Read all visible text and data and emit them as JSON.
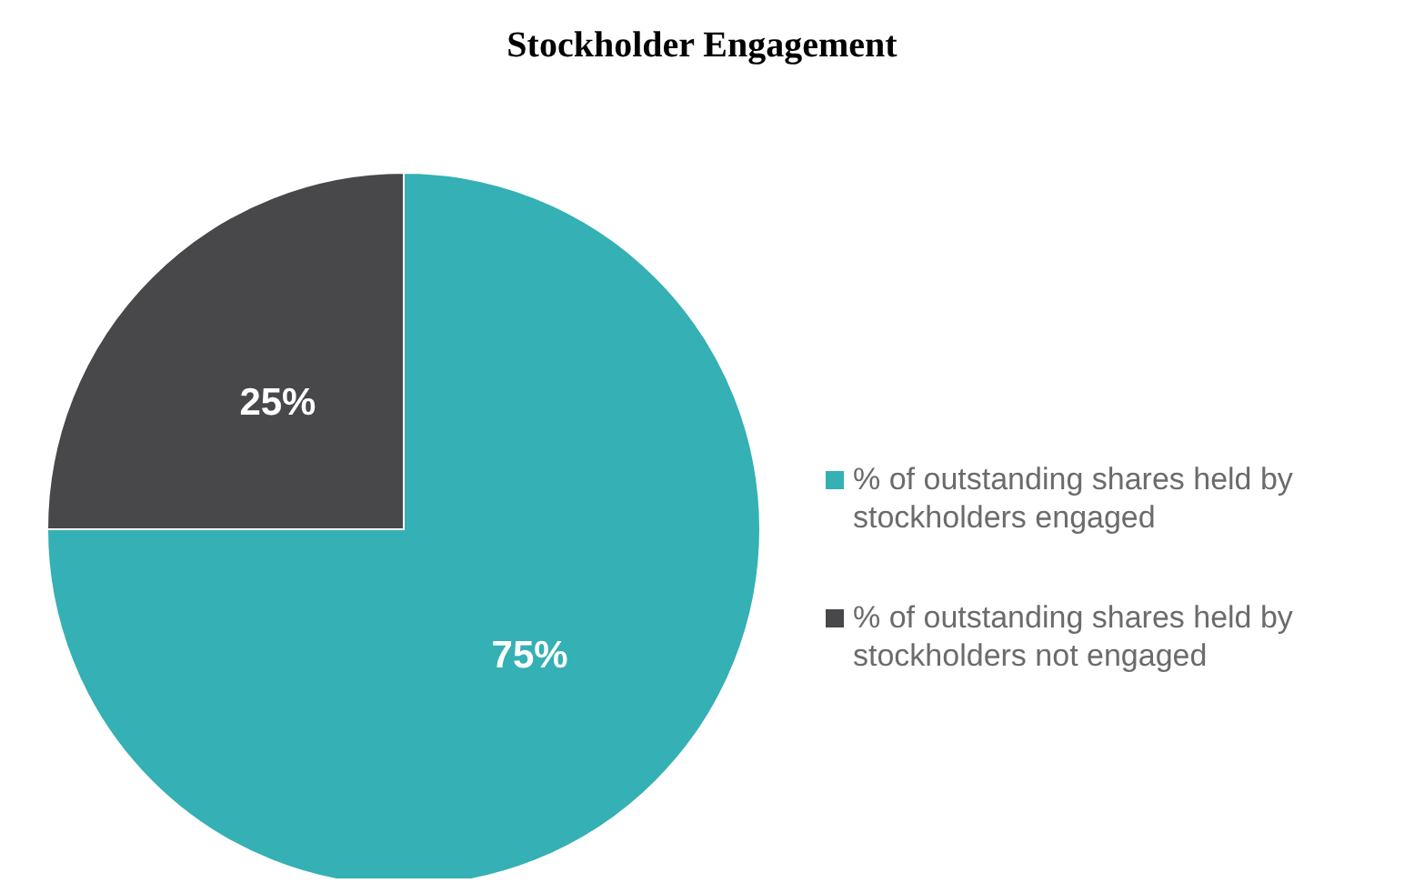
{
  "chart_data": {
    "type": "pie",
    "title": "Stockholder Engagement",
    "categories": [
      "% of outstanding shares held by stockholders engaged",
      "% of outstanding shares held by stockholders not engaged"
    ],
    "values": [
      75,
      25
    ],
    "colors": [
      "#35b0b4",
      "#48484a"
    ],
    "value_labels": [
      "75%",
      "25%"
    ],
    "legend": "right"
  }
}
